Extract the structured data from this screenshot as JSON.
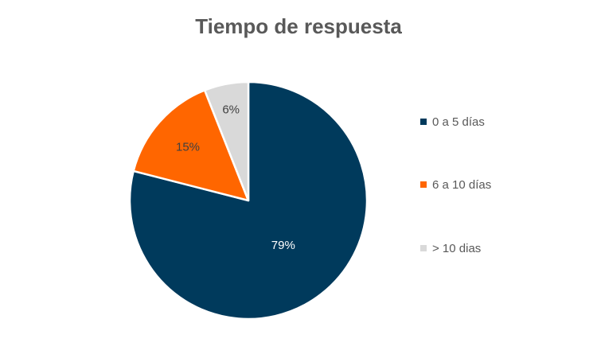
{
  "chart_data": {
    "type": "pie",
    "title": "Tiempo de respuesta",
    "categories": [
      "0 a 5 días",
      "6 a 10 días",
      "> 10 dias"
    ],
    "values": [
      79,
      15,
      6
    ],
    "data_labels": [
      "79%",
      "15%",
      "6%"
    ],
    "colors": [
      "#003A5C",
      "#FF6600",
      "#D9D9D9"
    ],
    "label_colors": [
      "#FFFFFF",
      "#404040",
      "#404040"
    ],
    "legend": "right",
    "start_angle_deg": 0,
    "direction": "clockwise"
  }
}
